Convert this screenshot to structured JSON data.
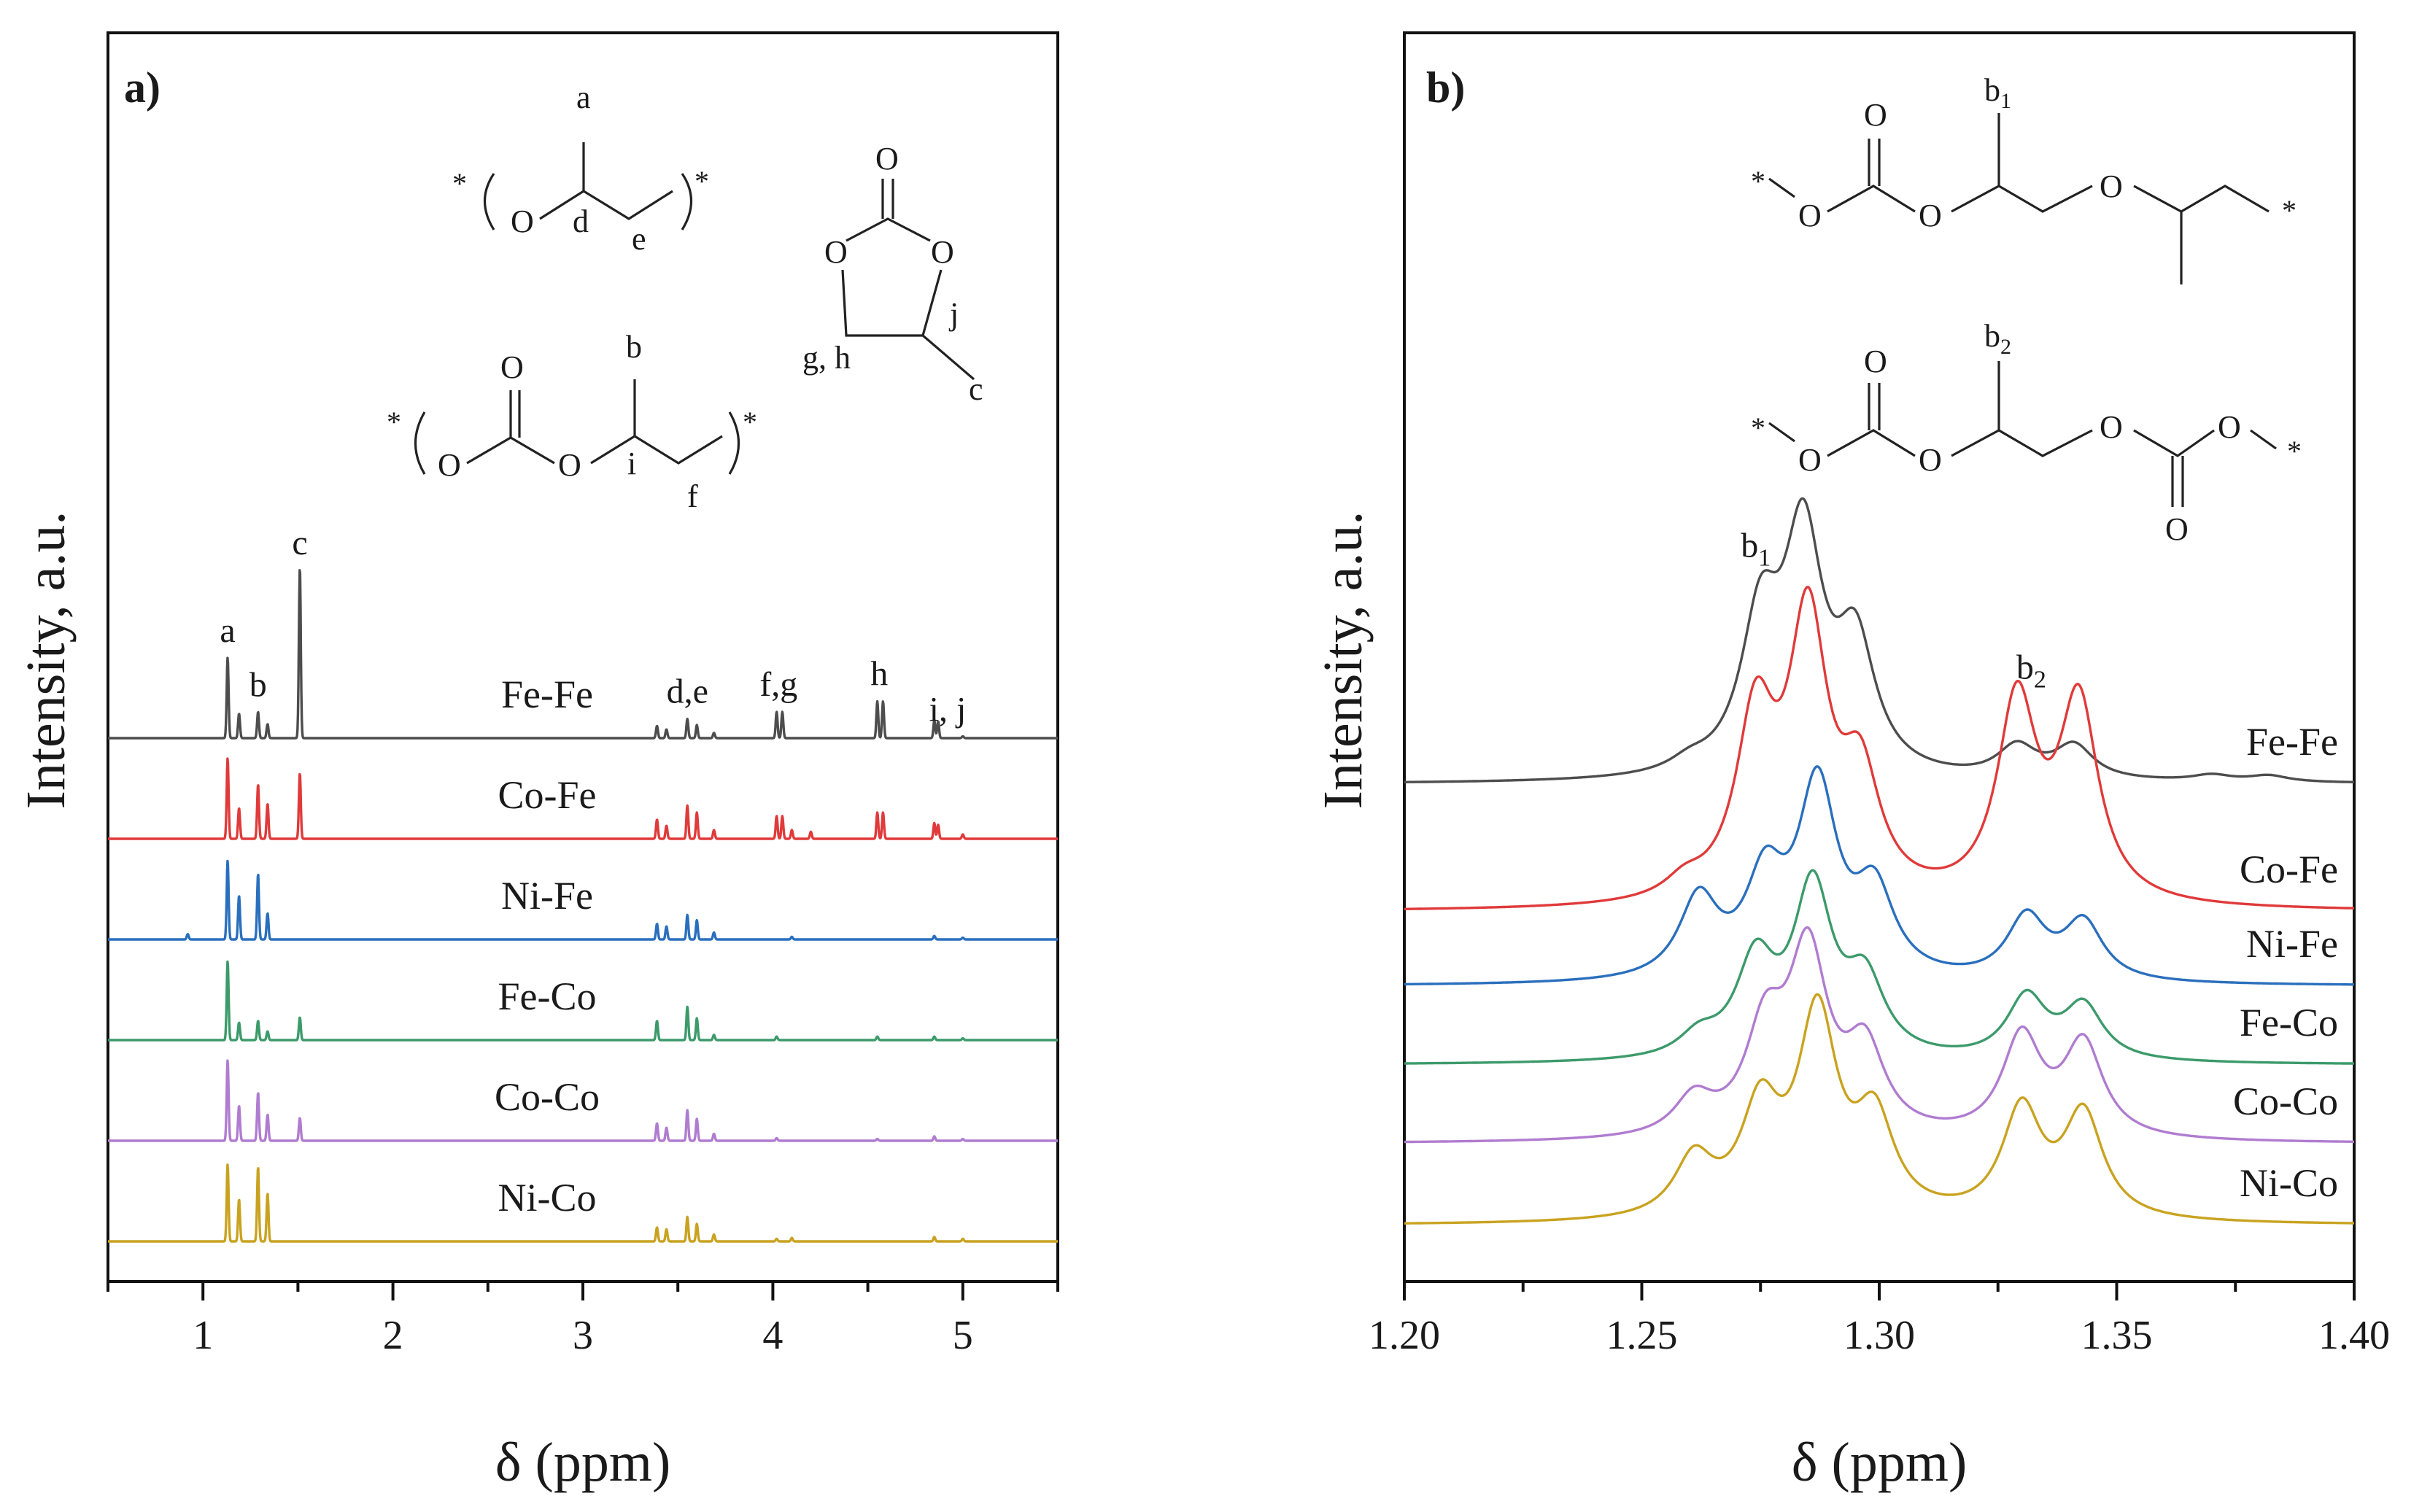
{
  "chart_data": [
    {
      "type": "line",
      "panel_label": "a)",
      "xlabel": "δ (ppm)",
      "ylabel": "Intensity, a.u.",
      "xlim": [
        0.5,
        5.5
      ],
      "x_ticks": [
        "1",
        "2",
        "3",
        "4",
        "5"
      ],
      "series": [
        {
          "name": "Fe-Fe",
          "color": "#4d4d4d",
          "offset": 5,
          "peaks": [
            [
              0.95,
              0.0
            ],
            [
              1.13,
              0.92
            ],
            [
              1.19,
              0.28
            ],
            [
              1.29,
              0.3
            ],
            [
              1.34,
              0.16
            ],
            [
              1.51,
              1.95
            ],
            [
              3.39,
              0.14
            ],
            [
              3.44,
              0.1
            ],
            [
              3.55,
              0.22
            ],
            [
              3.6,
              0.15
            ],
            [
              3.69,
              0.06
            ],
            [
              4.02,
              0.3
            ],
            [
              4.05,
              0.3
            ],
            [
              4.55,
              0.42
            ],
            [
              4.58,
              0.42
            ],
            [
              4.85,
              0.2
            ],
            [
              4.87,
              0.19
            ],
            [
              5.0,
              0.02
            ]
          ]
        },
        {
          "name": "Co-Fe",
          "color": "#e03a3a",
          "offset": 4,
          "peaks": [
            [
              0.95,
              0.0
            ],
            [
              1.13,
              0.92
            ],
            [
              1.19,
              0.35
            ],
            [
              1.29,
              0.62
            ],
            [
              1.34,
              0.4
            ],
            [
              1.51,
              0.75
            ],
            [
              3.39,
              0.22
            ],
            [
              3.44,
              0.15
            ],
            [
              3.55,
              0.38
            ],
            [
              3.6,
              0.3
            ],
            [
              3.69,
              0.1
            ],
            [
              4.02,
              0.26
            ],
            [
              4.05,
              0.26
            ],
            [
              4.1,
              0.1
            ],
            [
              4.2,
              0.08
            ],
            [
              4.55,
              0.3
            ],
            [
              4.58,
              0.3
            ],
            [
              4.85,
              0.18
            ],
            [
              4.87,
              0.16
            ],
            [
              5.0,
              0.05
            ]
          ]
        },
        {
          "name": "Ni-Fe",
          "color": "#2a6fbd",
          "offset": 3,
          "peaks": [
            [
              0.92,
              0.06
            ],
            [
              1.13,
              0.9
            ],
            [
              1.19,
              0.5
            ],
            [
              1.29,
              0.75
            ],
            [
              1.34,
              0.3
            ],
            [
              3.39,
              0.18
            ],
            [
              3.44,
              0.15
            ],
            [
              3.55,
              0.28
            ],
            [
              3.6,
              0.22
            ],
            [
              3.69,
              0.08
            ],
            [
              4.1,
              0.03
            ],
            [
              4.85,
              0.04
            ],
            [
              5.0,
              0.02
            ]
          ]
        },
        {
          "name": "Fe-Co",
          "color": "#3c9a6b",
          "offset": 2,
          "peaks": [
            [
              1.13,
              0.9
            ],
            [
              1.19,
              0.2
            ],
            [
              1.29,
              0.22
            ],
            [
              1.34,
              0.1
            ],
            [
              1.51,
              0.26
            ],
            [
              3.39,
              0.22
            ],
            [
              3.55,
              0.38
            ],
            [
              3.6,
              0.25
            ],
            [
              3.69,
              0.06
            ],
            [
              4.02,
              0.04
            ],
            [
              4.55,
              0.04
            ],
            [
              4.85,
              0.04
            ],
            [
              5.0,
              0.02
            ]
          ]
        },
        {
          "name": "Co-Co",
          "color": "#b07cd0",
          "offset": 1,
          "peaks": [
            [
              1.13,
              0.92
            ],
            [
              1.19,
              0.4
            ],
            [
              1.29,
              0.55
            ],
            [
              1.34,
              0.3
            ],
            [
              1.51,
              0.26
            ],
            [
              3.39,
              0.2
            ],
            [
              3.44,
              0.15
            ],
            [
              3.55,
              0.35
            ],
            [
              3.6,
              0.25
            ],
            [
              3.69,
              0.08
            ],
            [
              4.02,
              0.03
            ],
            [
              4.55,
              0.02
            ],
            [
              4.85,
              0.05
            ],
            [
              5.0,
              0.02
            ]
          ]
        },
        {
          "name": "Ni-Co",
          "color": "#c9a320",
          "offset": 0,
          "peaks": [
            [
              1.13,
              0.88
            ],
            [
              1.19,
              0.48
            ],
            [
              1.29,
              0.85
            ],
            [
              1.34,
              0.55
            ],
            [
              3.39,
              0.16
            ],
            [
              3.44,
              0.14
            ],
            [
              3.55,
              0.28
            ],
            [
              3.6,
              0.2
            ],
            [
              3.69,
              0.08
            ],
            [
              4.02,
              0.03
            ],
            [
              4.1,
              0.04
            ],
            [
              4.85,
              0.05
            ],
            [
              5.0,
              0.03
            ]
          ]
        }
      ],
      "peak_labels": [
        {
          "text": "a",
          "x": 1.13
        },
        {
          "text": "b",
          "x": 1.29
        },
        {
          "text": "c",
          "x": 1.51
        },
        {
          "text": "d,e",
          "x": 3.55
        },
        {
          "text": "f,g",
          "x": 4.03
        },
        {
          "text": "h",
          "x": 4.56
        },
        {
          "text": "i, j",
          "x": 4.92
        }
      ]
    },
    {
      "type": "line",
      "panel_label": "b)",
      "xlabel": "δ (ppm)",
      "ylabel": "Intensity, a.u.",
      "xlim": [
        1.2,
        1.4
      ],
      "x_ticks": [
        "1.20",
        "1.25",
        "1.30",
        "1.35",
        "1.40"
      ],
      "series": [
        {
          "name": "Fe-Fe",
          "color": "#4d4d4d",
          "offset": 5,
          "peaks": [
            [
              1.26,
              0.05
            ],
            [
              1.275,
              0.7
            ],
            [
              1.284,
              1.1
            ],
            [
              1.295,
              0.6
            ],
            [
              1.329,
              0.15
            ],
            [
              1.341,
              0.16
            ],
            [
              1.37,
              0.03
            ],
            [
              1.382,
              0.03
            ]
          ]
        },
        {
          "name": "Co-Fe",
          "color": "#e03a3a",
          "offset": 4,
          "peaks": [
            [
              1.259,
              0.08
            ],
            [
              1.274,
              0.85
            ],
            [
              1.285,
              1.3
            ],
            [
              1.296,
              0.55
            ],
            [
              1.329,
              0.95
            ],
            [
              1.342,
              0.95
            ]
          ]
        },
        {
          "name": "Ni-Fe",
          "color": "#2a6fbd",
          "offset": 3,
          "peaks": [
            [
              1.262,
              0.38
            ],
            [
              1.276,
              0.45
            ],
            [
              1.287,
              0.9
            ],
            [
              1.299,
              0.4
            ],
            [
              1.331,
              0.3
            ],
            [
              1.343,
              0.28
            ]
          ]
        },
        {
          "name": "Fe-Co",
          "color": "#3c9a6b",
          "offset": 2,
          "peaks": [
            [
              1.262,
              0.1
            ],
            [
              1.274,
              0.45
            ],
            [
              1.286,
              0.8
            ],
            [
              1.297,
              0.35
            ],
            [
              1.331,
              0.3
            ],
            [
              1.343,
              0.26
            ]
          ]
        },
        {
          "name": "Co-Co",
          "color": "#b07cd0",
          "offset": 1,
          "peaks": [
            [
              1.261,
              0.18
            ],
            [
              1.276,
              0.48
            ],
            [
              1.285,
              0.85
            ],
            [
              1.297,
              0.4
            ],
            [
              1.33,
              0.48
            ],
            [
              1.343,
              0.45
            ]
          ]
        },
        {
          "name": "Ni-Co",
          "color": "#c9a320",
          "offset": 0,
          "peaks": [
            [
              1.261,
              0.28
            ],
            [
              1.275,
              0.5
            ],
            [
              1.287,
              0.95
            ],
            [
              1.299,
              0.45
            ],
            [
              1.33,
              0.52
            ],
            [
              1.343,
              0.5
            ]
          ]
        }
      ],
      "peak_labels": [
        {
          "text": "b",
          "sub": "1",
          "x": 1.274
        },
        {
          "text": "b",
          "sub": "2",
          "x": 1.332
        }
      ]
    }
  ],
  "structures": {
    "poly_ether": {
      "star_left": "*",
      "star_right": "*",
      "o": "O",
      "a": "a",
      "d": "d",
      "e": "e"
    },
    "poly_carbonate": {
      "star_left": "*",
      "star_right": "*",
      "o_carbonyl": "O",
      "o1": "O",
      "o2": "O",
      "b": "b",
      "i": "i",
      "f": "f"
    },
    "cyclic_carbonate": {
      "o_top": "O",
      "o_left": "O",
      "o_right": "O",
      "gh": "g, h",
      "j": "j",
      "c": "c"
    },
    "b1_structure": {
      "b": "b",
      "sub": "1",
      "star_left": "*",
      "star_right": "*",
      "o_carbonyl": "O",
      "o1": "O",
      "o2": "O",
      "o3": "O"
    },
    "b2_structure": {
      "b": "b",
      "sub": "2",
      "star_left": "*",
      "star_right": "*",
      "o_carbonyl1": "O",
      "o1": "O",
      "o2": "O",
      "o3": "O",
      "o4": "O",
      "o_carbonyl2": "O"
    }
  }
}
